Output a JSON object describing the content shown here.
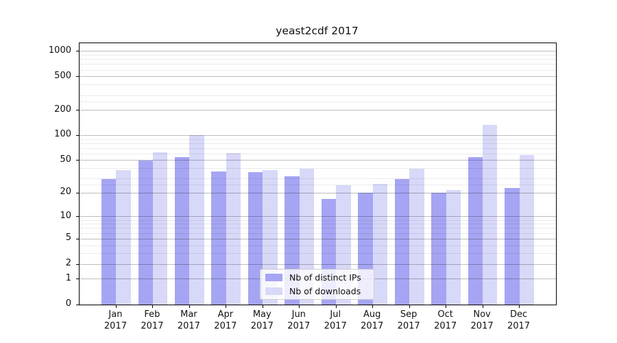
{
  "chart_data": {
    "type": "bar",
    "title": "yeast2cdf 2017",
    "categories": [
      "Jan",
      "Feb",
      "Mar",
      "Apr",
      "May",
      "Jun",
      "Jul",
      "Aug",
      "Sep",
      "Oct",
      "Nov",
      "Dec"
    ],
    "year": "2017",
    "series": [
      {
        "name": "Nb of distinct IPs",
        "color": "#a5a5f3",
        "values": [
          30,
          50,
          55,
          37,
          36,
          32,
          17,
          20,
          30,
          20,
          55,
          23
        ]
      },
      {
        "name": "Nb of downloads",
        "color": "#d8d8f8",
        "values": [
          38,
          63,
          100,
          62,
          38,
          40,
          25,
          26,
          40,
          22,
          135,
          58
        ]
      }
    ],
    "xlabel": "",
    "ylabel": "",
    "yscale": "log1p",
    "y_ticks": [
      0,
      1,
      2,
      5,
      10,
      20,
      50,
      100,
      200,
      500,
      1000
    ],
    "y_minor_gridlines": [
      3,
      4,
      6,
      7,
      8,
      9,
      25,
      30,
      40,
      60,
      70,
      80,
      90,
      250,
      300,
      400,
      600,
      700,
      800,
      900
    ],
    "ylim": [
      0,
      1250
    ],
    "grid": true,
    "legend_position": "lower center"
  },
  "colors": {
    "background": "#ffffff",
    "bar_distinct_ips": "#a5a5f3",
    "bar_downloads": "#d8d8f8",
    "major_grid": "#c2c2c2",
    "minor_grid": "#ebebeb",
    "axis": "#000000",
    "legend_border": "#cccccc"
  }
}
